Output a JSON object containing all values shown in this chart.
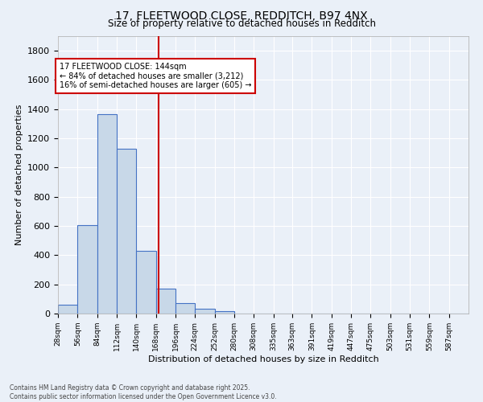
{
  "title_line1": "17, FLEETWOOD CLOSE, REDDITCH, B97 4NX",
  "title_line2": "Size of property relative to detached houses in Redditch",
  "xlabel": "Distribution of detached houses by size in Redditch",
  "ylabel": "Number of detached properties",
  "bar_left_edges": [
    0,
    28,
    56,
    84,
    112,
    140,
    168,
    196,
    224,
    252,
    280,
    308,
    335,
    363,
    391,
    419,
    447,
    475,
    503,
    531,
    559
  ],
  "bar_heights": [
    60,
    605,
    1365,
    1130,
    430,
    170,
    70,
    35,
    15,
    0,
    0,
    0,
    0,
    0,
    0,
    0,
    0,
    0,
    0,
    0,
    0
  ],
  "bin_width": 28,
  "bar_color": "#c8d8e8",
  "bar_edge_color": "#4472c4",
  "bg_color": "#eaf0f8",
  "grid_color": "#ffffff",
  "vline_x": 144,
  "vline_color": "#cc0000",
  "ylim": [
    0,
    1900
  ],
  "yticks": [
    0,
    200,
    400,
    600,
    800,
    1000,
    1200,
    1400,
    1600,
    1800
  ],
  "xtick_labels": [
    "28sqm",
    "56sqm",
    "84sqm",
    "112sqm",
    "140sqm",
    "168sqm",
    "196sqm",
    "224sqm",
    "252sqm",
    "280sqm",
    "308sqm",
    "335sqm",
    "363sqm",
    "391sqm",
    "419sqm",
    "447sqm",
    "475sqm",
    "503sqm",
    "531sqm",
    "559sqm",
    "587sqm"
  ],
  "annotation_title": "17 FLEETWOOD CLOSE: 144sqm",
  "annotation_line1": "← 84% of detached houses are smaller (3,212)",
  "annotation_line2": "16% of semi-detached houses are larger (605) →",
  "annotation_box_color": "#ffffff",
  "annotation_box_edge": "#cc0000",
  "footer_line1": "Contains HM Land Registry data © Crown copyright and database right 2025.",
  "footer_line2": "Contains public sector information licensed under the Open Government Licence v3.0."
}
